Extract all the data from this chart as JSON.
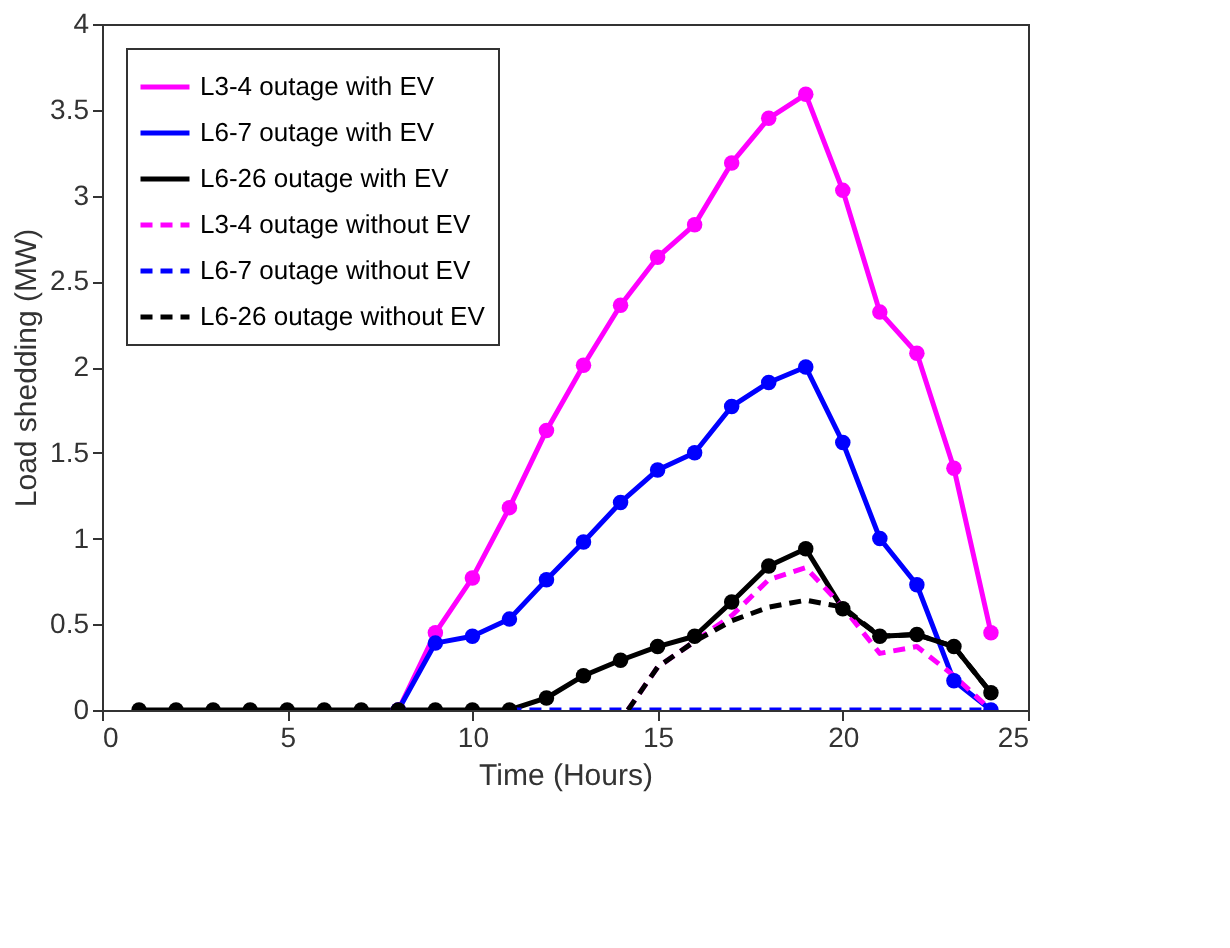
{
  "chart_data": {
    "type": "line",
    "xlabel": "Time (Hours)",
    "ylabel": "Load shedding (MW)",
    "xlim": [
      0,
      25
    ],
    "xticks": [
      0,
      5,
      10,
      15,
      20,
      25
    ],
    "ylim": [
      0,
      4
    ],
    "yticks": [
      0,
      0.5,
      1,
      1.5,
      2,
      2.5,
      3,
      3.5,
      4
    ],
    "grid": false,
    "legend": "top left",
    "x": [
      1,
      2,
      3,
      4,
      5,
      6,
      7,
      8,
      9,
      10,
      11,
      12,
      13,
      14,
      15,
      16,
      17,
      18,
      19,
      20,
      21,
      22,
      23,
      24
    ],
    "series": [
      {
        "name": "L3-4 outage with EV",
        "color": "#ff00ff",
        "marker": "circle",
        "line_style": "solid",
        "values": [
          null,
          null,
          null,
          null,
          null,
          null,
          null,
          0,
          0.45,
          0.77,
          1.18,
          1.63,
          2.01,
          2.36,
          2.64,
          2.83,
          3.19,
          3.45,
          3.59,
          3.03,
          2.32,
          2.08,
          1.41,
          0.45
        ]
      },
      {
        "name": "L6-7 outage with EV",
        "color": "#0000ff",
        "marker": "circle",
        "line_style": "solid",
        "values": [
          null,
          null,
          null,
          null,
          null,
          null,
          null,
          0,
          0.39,
          0.43,
          0.53,
          0.76,
          0.98,
          1.21,
          1.4,
          1.5,
          1.77,
          1.91,
          2.0,
          1.56,
          1.0,
          0.73,
          0.17,
          0
        ]
      },
      {
        "name": "L6-26 outage with EV",
        "color": "#000000",
        "marker": "circle",
        "line_style": "solid",
        "values": [
          0,
          0,
          0,
          0,
          0,
          0,
          0,
          0,
          0,
          0,
          0,
          0.07,
          0.2,
          0.29,
          0.37,
          0.43,
          0.63,
          0.84,
          0.94,
          0.59,
          0.43,
          0.44,
          0.37,
          0.1
        ]
      },
      {
        "name": "L3-4 outage without EV",
        "color": "#ff00ff",
        "marker": "none",
        "line_style": "dashed",
        "x": [
          14.2,
          15,
          16,
          17,
          18,
          19,
          20,
          21,
          22,
          23,
          24
        ],
        "values": [
          0,
          0.25,
          0.4,
          0.55,
          0.76,
          0.83,
          0.6,
          0.33,
          0.37,
          0.2,
          0
        ]
      },
      {
        "name": "L6-7 outage without EV",
        "color": "#0000ff",
        "marker": "none",
        "line_style": "dashed",
        "x": [
          11,
          12,
          13,
          14,
          15,
          16,
          17,
          18,
          19,
          20,
          21,
          22,
          23,
          24
        ],
        "values": [
          0,
          0,
          0,
          0,
          0,
          0,
          0,
          0,
          0,
          0,
          0,
          0,
          0,
          0
        ]
      },
      {
        "name": "L6-26 outage without EV",
        "color": "#000000",
        "marker": "none",
        "line_style": "dashed",
        "x": [
          14.2,
          15,
          16,
          17,
          18,
          19,
          20,
          21,
          22,
          23,
          24
        ],
        "values": [
          0,
          0.25,
          0.4,
          0.52,
          0.6,
          0.64,
          0.6,
          0.43,
          0.44,
          0.37,
          0.1
        ]
      }
    ]
  }
}
